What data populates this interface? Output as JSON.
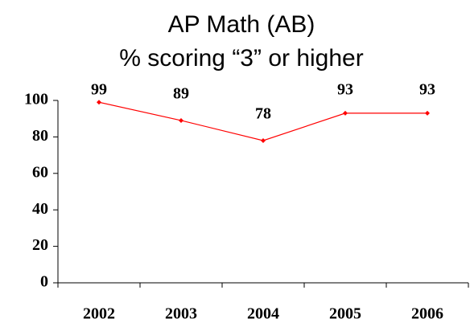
{
  "chart_data": {
    "type": "line",
    "title": "AP Math (AB)",
    "subtitle": "% scoring “3” or higher",
    "categories": [
      "2002",
      "2003",
      "2004",
      "2005",
      "2006"
    ],
    "series": [
      {
        "name": "% scoring 3 or higher",
        "color": "#ff0000",
        "values": [
          99,
          89,
          78,
          93,
          93
        ]
      }
    ],
    "ylim": [
      0,
      100
    ],
    "yticks": [
      0,
      20,
      40,
      60,
      80,
      100
    ],
    "grid": false
  }
}
